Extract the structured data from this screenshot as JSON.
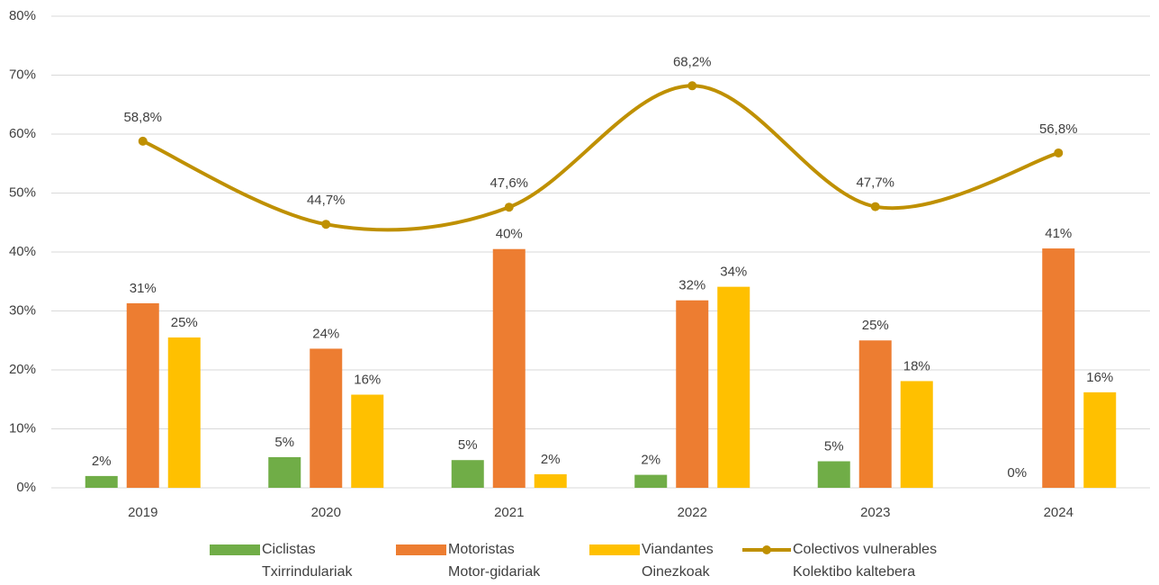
{
  "chart_data": {
    "type": "bar",
    "categories": [
      "2019",
      "2020",
      "2021",
      "2022",
      "2023",
      "2024"
    ],
    "ylim": [
      0,
      80
    ],
    "yticks": [
      {
        "value": 0,
        "label": "0%"
      },
      {
        "value": 10,
        "label": "10%"
      },
      {
        "value": 20,
        "label": "20%"
      },
      {
        "value": 30,
        "label": "30%"
      },
      {
        "value": 40,
        "label": "40%"
      },
      {
        "value": 50,
        "label": "50%"
      },
      {
        "value": 60,
        "label": "60%"
      },
      {
        "value": 70,
        "label": "70%"
      },
      {
        "value": 80,
        "label": "80%"
      }
    ],
    "grid": true,
    "legend": "bottom",
    "series": [
      {
        "name": "Ciclistas\nTxirrindulariak",
        "color": "#70ad47",
        "values": [
          2.0,
          5.2,
          4.7,
          2.2,
          4.5,
          0
        ],
        "value_labels": [
          "2%",
          "5%",
          "5%",
          "2%",
          "5%",
          "0%"
        ]
      },
      {
        "name": "Motoristas\nMotor-gidariak",
        "color": "#ed7d31",
        "values": [
          31.3,
          23.6,
          40.5,
          31.8,
          25.0,
          40.6
        ],
        "value_labels": [
          "31%",
          "24%",
          "40%",
          "32%",
          "25%",
          "41%"
        ]
      },
      {
        "name": "Viandantes\nOinezkoak",
        "color": "#ffc000",
        "values": [
          25.5,
          15.8,
          2.3,
          34.1,
          18.1,
          16.2
        ],
        "value_labels": [
          "25%",
          "16%",
          "2%",
          "34%",
          "18%",
          "16%"
        ]
      },
      {
        "name": "Colectivos vulnerables\nKolektibo kaltebera",
        "color": "#bf9000",
        "type": "line",
        "values": [
          58.8,
          44.7,
          47.6,
          68.2,
          47.7,
          56.8
        ],
        "value_labels": [
          "58,8%",
          "44,7%",
          "47,6%",
          "68,2%",
          "47,7%",
          "56,8%"
        ]
      }
    ]
  }
}
